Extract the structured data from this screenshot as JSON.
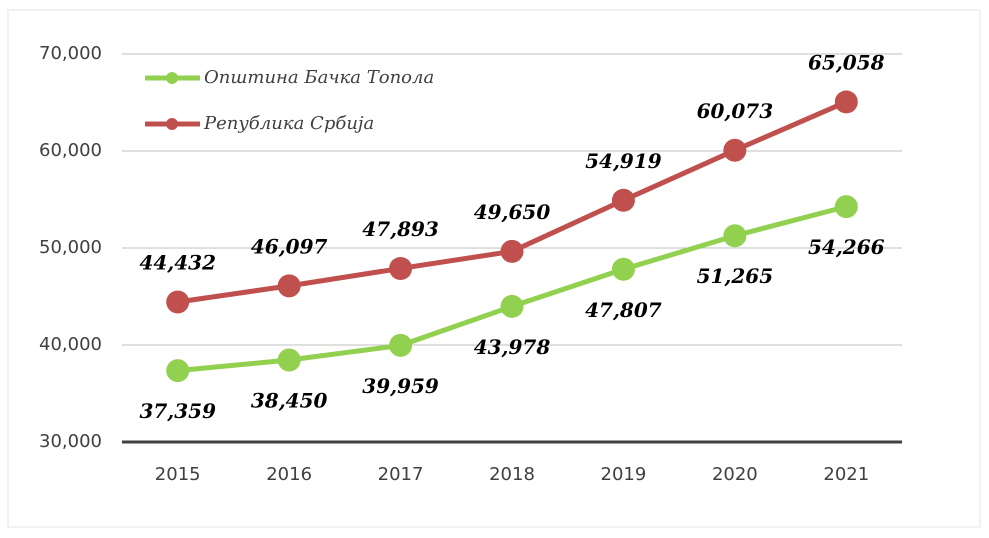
{
  "chart_data": {
    "type": "line",
    "categories": [
      "2015",
      "2016",
      "2017",
      "2018",
      "2019",
      "2020",
      "2021"
    ],
    "series": [
      {
        "name": "Општина Бачка Топола",
        "color": "#92d050",
        "values": [
          37359,
          38450,
          39959,
          43978,
          47807,
          51265,
          54266
        ],
        "value_labels": [
          "37,359",
          "38,450",
          "39,959",
          "43,978",
          "47,807",
          "51,265",
          "54,266"
        ]
      },
      {
        "name": "Република Србија",
        "color": "#c0504d",
        "values": [
          44432,
          46097,
          47893,
          49650,
          54919,
          60073,
          65058
        ],
        "value_labels": [
          "44,432",
          "46,097",
          "47,893",
          "49,650",
          "54,919",
          "60,073",
          "65,058"
        ]
      }
    ],
    "ylim": [
      30000,
      70000
    ],
    "yticks": [
      {
        "value": 30000,
        "label": "30,000"
      },
      {
        "value": 40000,
        "label": "40,000"
      },
      {
        "value": 50000,
        "label": "50,000"
      },
      {
        "value": 60000,
        "label": "60,000"
      },
      {
        "value": 70000,
        "label": "70,000"
      }
    ],
    "grid": true,
    "legend": "top-left"
  }
}
